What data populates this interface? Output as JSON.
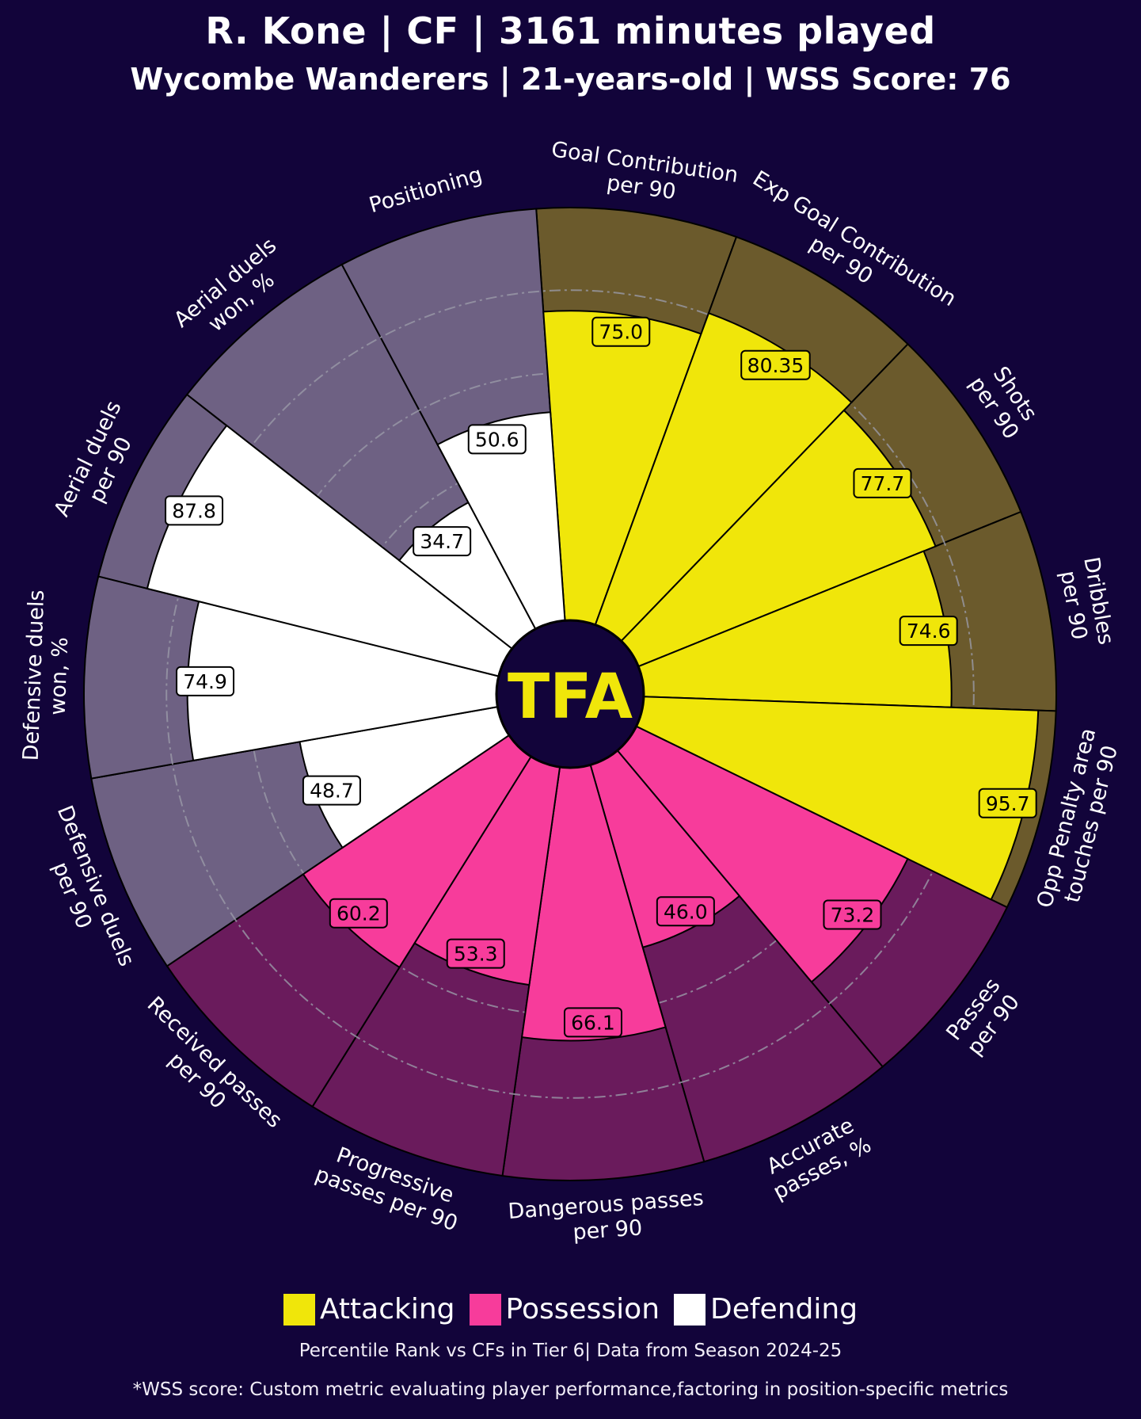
{
  "header": {
    "title": "R. Kone | CF | 3161 minutes played",
    "subtitle": "Wycombe Wanderers | 21-years-old | WSS Score: 76"
  },
  "center_logo": "TFA",
  "colors": {
    "background": "#12043a",
    "attacking": "#f0e60a",
    "attacking_bg": "#6b5a2c",
    "possession": "#f73c9b",
    "possession_bg": "#6a1b5c",
    "defending": "#ffffff",
    "defending_bg": "#6e6183"
  },
  "legend": {
    "attacking": "Attacking",
    "possession": "Possession",
    "defending": "Defending"
  },
  "note": "Percentile Rank vs CFs in Tier 6| Data from Season 2024-25",
  "footnote": "*WSS score: Custom metric evaluating player performance,factoring in position-specific metrics",
  "chart_data": {
    "type": "pizza",
    "scale": [
      0,
      100
    ],
    "gridlines": [
      40,
      60,
      80
    ],
    "series": [
      {
        "label": "Goal Contribution\nper 90",
        "value": 75.0,
        "display": "75.0",
        "group": "attacking"
      },
      {
        "label": "Exp Goal Contribution\nper 90",
        "value": 80.35,
        "display": "80.35",
        "group": "attacking"
      },
      {
        "label": "Shots\nper 90",
        "value": 77.7,
        "display": "77.7",
        "group": "attacking"
      },
      {
        "label": "Dribbles\nper 90",
        "value": 74.6,
        "display": "74.6",
        "group": "attacking"
      },
      {
        "label": "Opp Penalty area\ntouches per 90",
        "value": 95.7,
        "display": "95.7",
        "group": "attacking"
      },
      {
        "label": "Passes\nper 90",
        "value": 73.2,
        "display": "73.2",
        "group": "possession"
      },
      {
        "label": "Accurate\npasses, %",
        "value": 46.0,
        "display": "46.0",
        "group": "possession"
      },
      {
        "label": "Dangerous passes\nper 90",
        "value": 66.1,
        "display": "66.1",
        "group": "possession"
      },
      {
        "label": "Progressive\npasses per 90",
        "value": 53.3,
        "display": "53.3",
        "group": "possession"
      },
      {
        "label": "Received passes\nper 90",
        "value": 60.2,
        "display": "60.2",
        "group": "possession"
      },
      {
        "label": "Defensive duels\nper 90",
        "value": 48.7,
        "display": "48.7",
        "group": "defending"
      },
      {
        "label": "Defensive duels\nwon, %",
        "value": 74.9,
        "display": "74.9",
        "group": "defending"
      },
      {
        "label": "Aerial duels\nper 90",
        "value": 87.8,
        "display": "87.8",
        "group": "defending"
      },
      {
        "label": "Aerial duels\nwon, %",
        "value": 34.7,
        "display": "34.7",
        "group": "defending"
      },
      {
        "label": "Positioning",
        "value": 50.6,
        "display": "50.6",
        "group": "defending"
      }
    ]
  }
}
